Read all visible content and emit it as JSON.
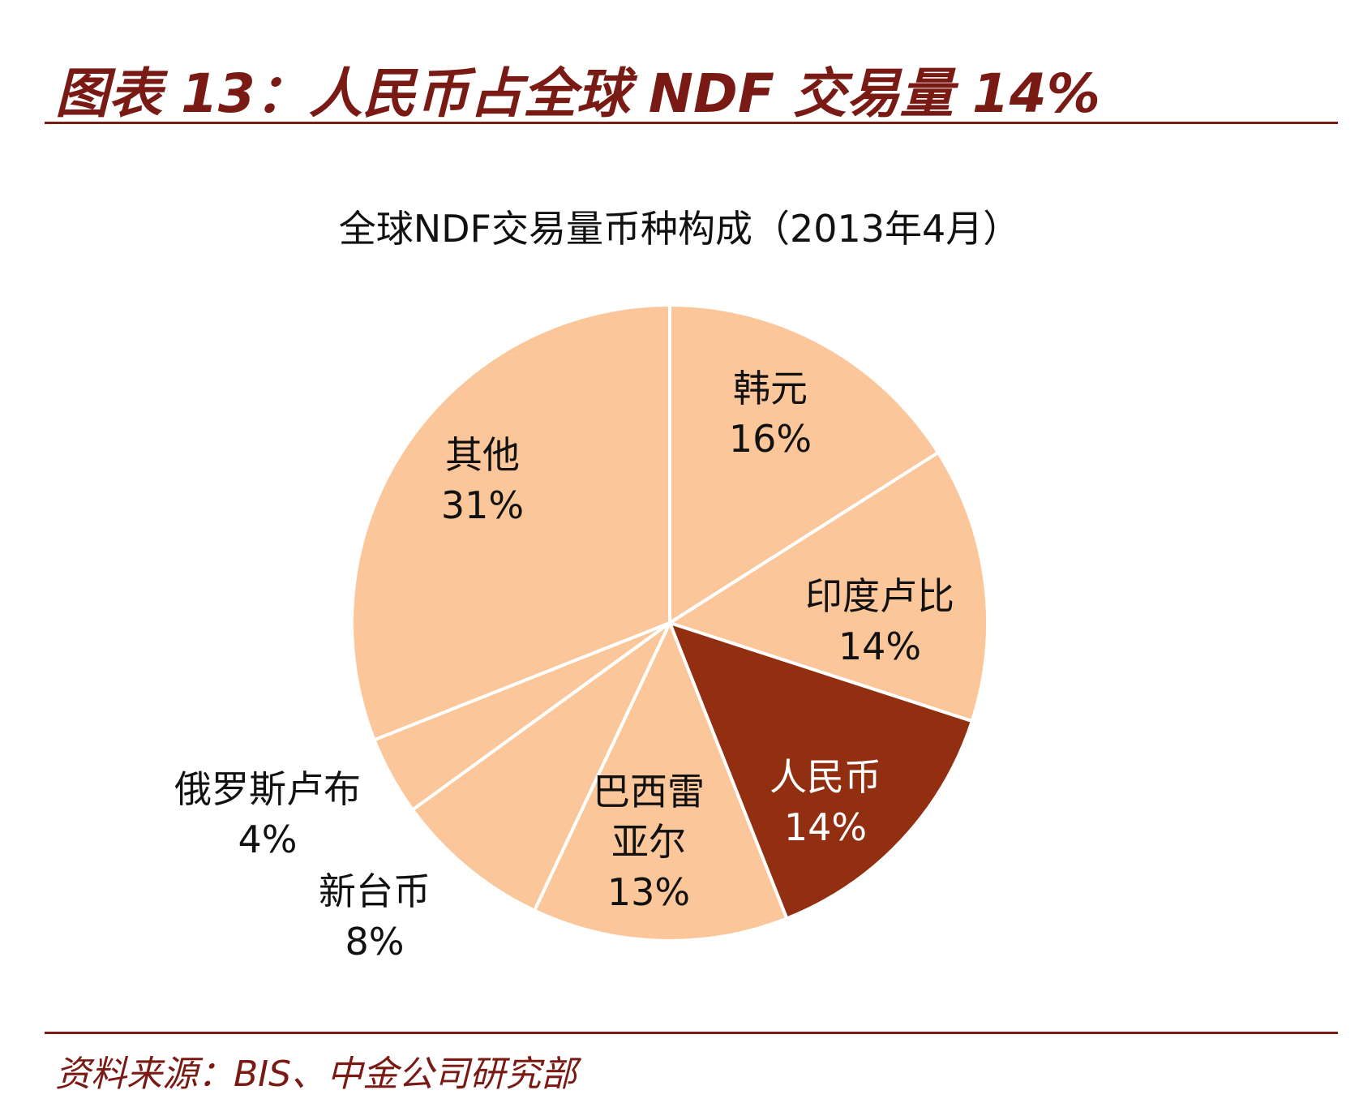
{
  "figure_title": "图表 13：人民币占全球 NDF 交易量 14%",
  "source": "资料来源：BIS、中金公司研究部",
  "colors": {
    "accent": "#7a1a14",
    "slice_fill": "#fbc79a",
    "highlight_fill": "#922f10",
    "divider": "#ffffff"
  },
  "chart_data": {
    "type": "pie",
    "title": "全球NDF交易量币种构成（2013年4月）",
    "slices": [
      {
        "name": "韩元",
        "value": 16,
        "label_lines": [
          "韩元"
        ],
        "pct_label": "16%",
        "highlight": false
      },
      {
        "name": "印度卢比",
        "value": 14,
        "label_lines": [
          "印度卢比"
        ],
        "pct_label": "14%",
        "highlight": false
      },
      {
        "name": "人民币",
        "value": 14,
        "label_lines": [
          "人民币"
        ],
        "pct_label": "14%",
        "highlight": true
      },
      {
        "name": "巴西雷亚尔",
        "value": 13,
        "label_lines": [
          "巴西雷",
          "亚尔"
        ],
        "pct_label": "13%",
        "highlight": false
      },
      {
        "name": "新台币",
        "value": 8,
        "label_lines": [
          "新台币"
        ],
        "pct_label": "8%",
        "highlight": false
      },
      {
        "name": "俄罗斯卢布",
        "value": 4,
        "label_lines": [
          "俄罗斯卢布"
        ],
        "pct_label": "4%",
        "highlight": false
      },
      {
        "name": "其他",
        "value": 31,
        "label_lines": [
          "其他"
        ],
        "pct_label": "31%",
        "highlight": false
      }
    ],
    "start": "12 o'clock",
    "direction": "clockwise",
    "legend": "none"
  }
}
